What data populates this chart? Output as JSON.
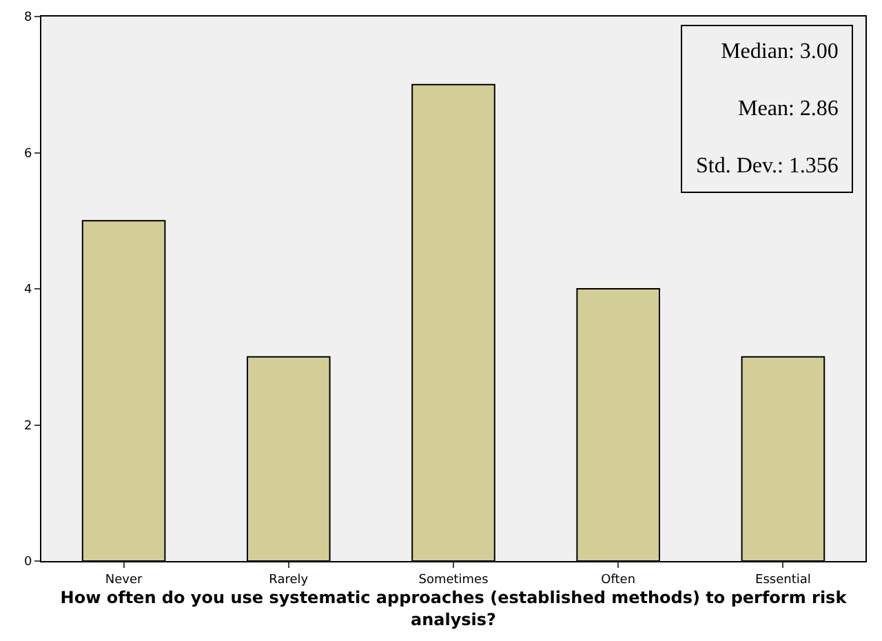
{
  "chart_data": {
    "type": "bar",
    "categories": [
      "Never",
      "Rarely",
      "Sometimes",
      "Often",
      "Essential"
    ],
    "values": [
      5,
      3,
      7,
      4,
      3
    ],
    "color": "#d3ce97",
    "ylim": [
      0,
      8
    ],
    "yticks": [
      0,
      2,
      4,
      6,
      8
    ],
    "grid": false,
    "legend": false,
    "xlabel": "How often do you use systematic approaches (established methods) to perform risk analysis?",
    "annotations": [
      "Median: 3.00",
      "Mean: 2.86",
      "Std. Dev.: 1.356"
    ]
  }
}
